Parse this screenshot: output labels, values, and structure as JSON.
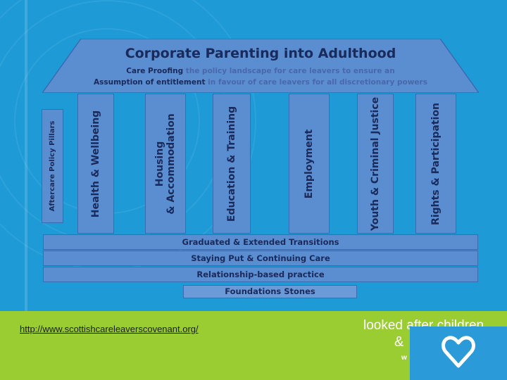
{
  "diagram": {
    "title": "Corporate Parenting into Adulthood",
    "roof_line1_bold": "Care Proofing",
    "roof_line1_rest": "the policy landscape for care leavers to ensure an",
    "roof_line2_bold": "Assumption of entitlement",
    "roof_line2_rest": "in favour of care leavers for all discretionary powers",
    "side_label": "Aftercare Policy Pillars",
    "pillars": [
      {
        "label": "Health & Wellbeing"
      },
      {
        "label": "Housing",
        "label2": "& Accommodation"
      },
      {
        "label": "Education & Training"
      },
      {
        "label": "Employment"
      },
      {
        "label": "Youth & Criminal Justice"
      },
      {
        "label": "Rights & Participation"
      }
    ],
    "bands": [
      "Graduated & Extended Transitions",
      "Staying Put & Continuing Care",
      "Relationship-based practice"
    ],
    "foundation": "Foundations Stones"
  },
  "footer": {
    "url": "http://www.scottishcareleaverscovenant.org/",
    "logo_line1": "looked after children",
    "logo_amp": "&",
    "logo_w": "w"
  },
  "colors": {
    "background": "#1e9ad6",
    "footer_bar": "#9acd32",
    "pillar_fill": "#5b8dd1",
    "text_dark": "#1a2a5a"
  }
}
